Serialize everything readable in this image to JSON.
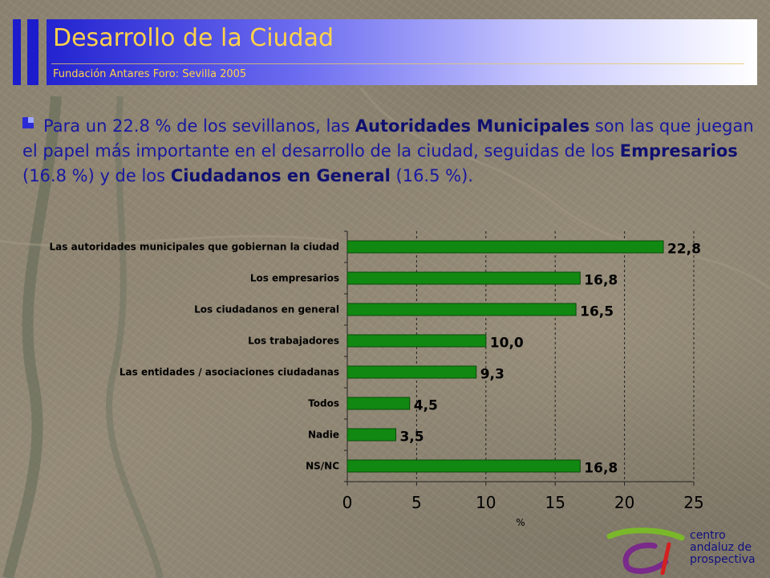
{
  "header": {
    "title": "Desarrollo de la Ciudad",
    "subtitle": "Fundación Antares Foro: Sevilla 2005"
  },
  "paragraph": {
    "t1": "Para un 22.8 % de los sevillanos, las ",
    "b1": "Autoridades Municipales",
    "t2": " son las que juegan el papel más importante en el desarrollo de la ciudad, seguidas de los ",
    "b2": "Empresarios",
    "t3": " (16.8 %) y de los ",
    "b3": "Ciudadanos en General",
    "t4": " (16.5 %)."
  },
  "chart_data": {
    "type": "bar",
    "orientation": "horizontal",
    "categories": [
      "Las autoridades municipales que gobiernan la ciudad",
      "Los empresarios",
      "Los ciudadanos en general",
      "Los trabajadores",
      "Las entidades / asociaciones ciudadanas",
      "Todos",
      "Nadie",
      "NS/NC"
    ],
    "values": [
      22.8,
      16.8,
      16.5,
      10.0,
      9.3,
      4.5,
      3.5,
      16.8
    ],
    "value_labels": [
      "22,8",
      "16,8",
      "16,5",
      "10,0",
      "9,3",
      "4,5",
      "3,5",
      "16,8"
    ],
    "xlabel": "%",
    "xlim": [
      0,
      25
    ],
    "xticks": [
      "0",
      "5",
      "10",
      "15",
      "20",
      "25"
    ],
    "grid": "vertical dashed",
    "bar_color": "#118811",
    "bar_edge": "#0a4a0a"
  },
  "logo": {
    "line1": "centro",
    "line2": "andaluz de",
    "line3": "prospectiva",
    "colors": {
      "green": "#7ab82a",
      "purple": "#7a2a8a",
      "red": "#d42020"
    }
  }
}
